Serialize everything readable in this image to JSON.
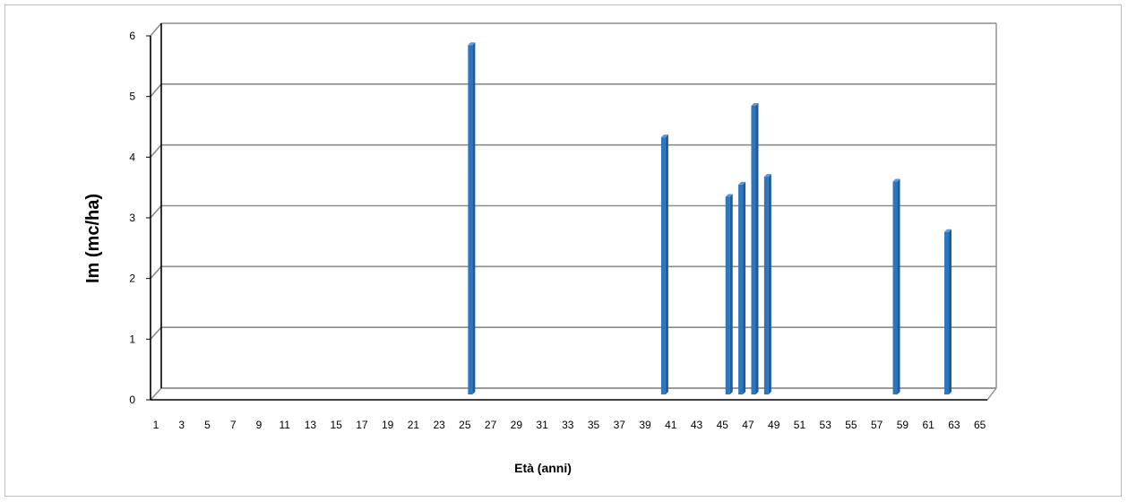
{
  "chart_data": {
    "type": "bar",
    "style": "3d-column",
    "xlabel": "Età (anni)",
    "ylabel": "Im (mc/ha)",
    "x_ticks": [
      1,
      3,
      5,
      7,
      9,
      11,
      13,
      15,
      17,
      19,
      21,
      23,
      25,
      27,
      29,
      31,
      33,
      35,
      37,
      39,
      41,
      43,
      45,
      47,
      49,
      51,
      53,
      55,
      57,
      59,
      61,
      63,
      65
    ],
    "x_range": [
      1,
      66
    ],
    "y_ticks": [
      0,
      1,
      2,
      3,
      4,
      5,
      6
    ],
    "ylim": [
      0,
      6
    ],
    "grid": true,
    "bar_color": "#2e75c0",
    "series": [
      {
        "points": [
          {
            "x": 25,
            "y": 5.85
          },
          {
            "x": 40,
            "y": 4.33
          },
          {
            "x": 45,
            "y": 3.35
          },
          {
            "x": 46,
            "y": 3.55
          },
          {
            "x": 47,
            "y": 4.85
          },
          {
            "x": 48,
            "y": 3.68
          },
          {
            "x": 58,
            "y": 3.6
          },
          {
            "x": 62,
            "y": 2.77
          }
        ]
      }
    ]
  }
}
